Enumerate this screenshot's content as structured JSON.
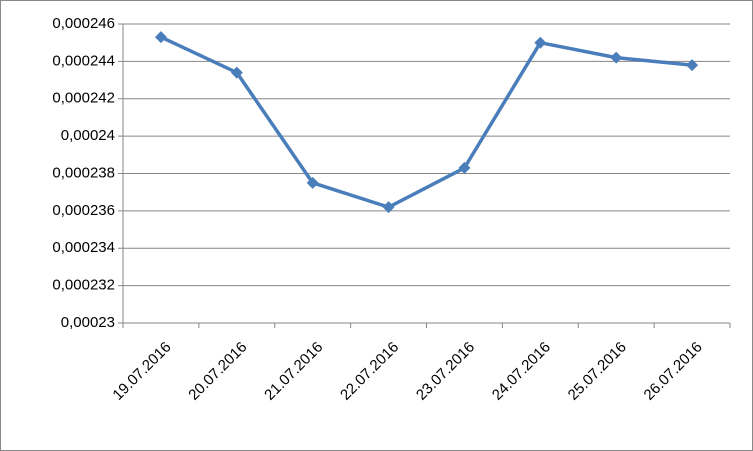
{
  "chart_data": {
    "type": "line",
    "categories": [
      "19.07.2016",
      "20.07.2016",
      "21.07.2016",
      "22.07.2016",
      "23.07.2016",
      "24.07.2016",
      "25.07.2016",
      "26.07.2016"
    ],
    "series": [
      {
        "color": "#4a7ebb",
        "values": [
          0.0002453,
          0.0002434,
          0.0002375,
          0.0002362,
          0.0002383,
          0.000245,
          0.0002442,
          0.0002438
        ]
      }
    ],
    "ylim": [
      0.00023,
      0.000246
    ],
    "yticks": [
      {
        "value": 0.00023,
        "label": "0,00023"
      },
      {
        "value": 0.000232,
        "label": "0,000232"
      },
      {
        "value": 0.000234,
        "label": "0,000234"
      },
      {
        "value": 0.000236,
        "label": "0,000236"
      },
      {
        "value": 0.000238,
        "label": "0,000238"
      },
      {
        "value": 0.00024,
        "label": "0,00024"
      },
      {
        "value": 0.000242,
        "label": "0,000242"
      },
      {
        "value": 0.000244,
        "label": "0,000244"
      },
      {
        "value": 0.000246,
        "label": "0,000246"
      }
    ],
    "grid": true
  }
}
